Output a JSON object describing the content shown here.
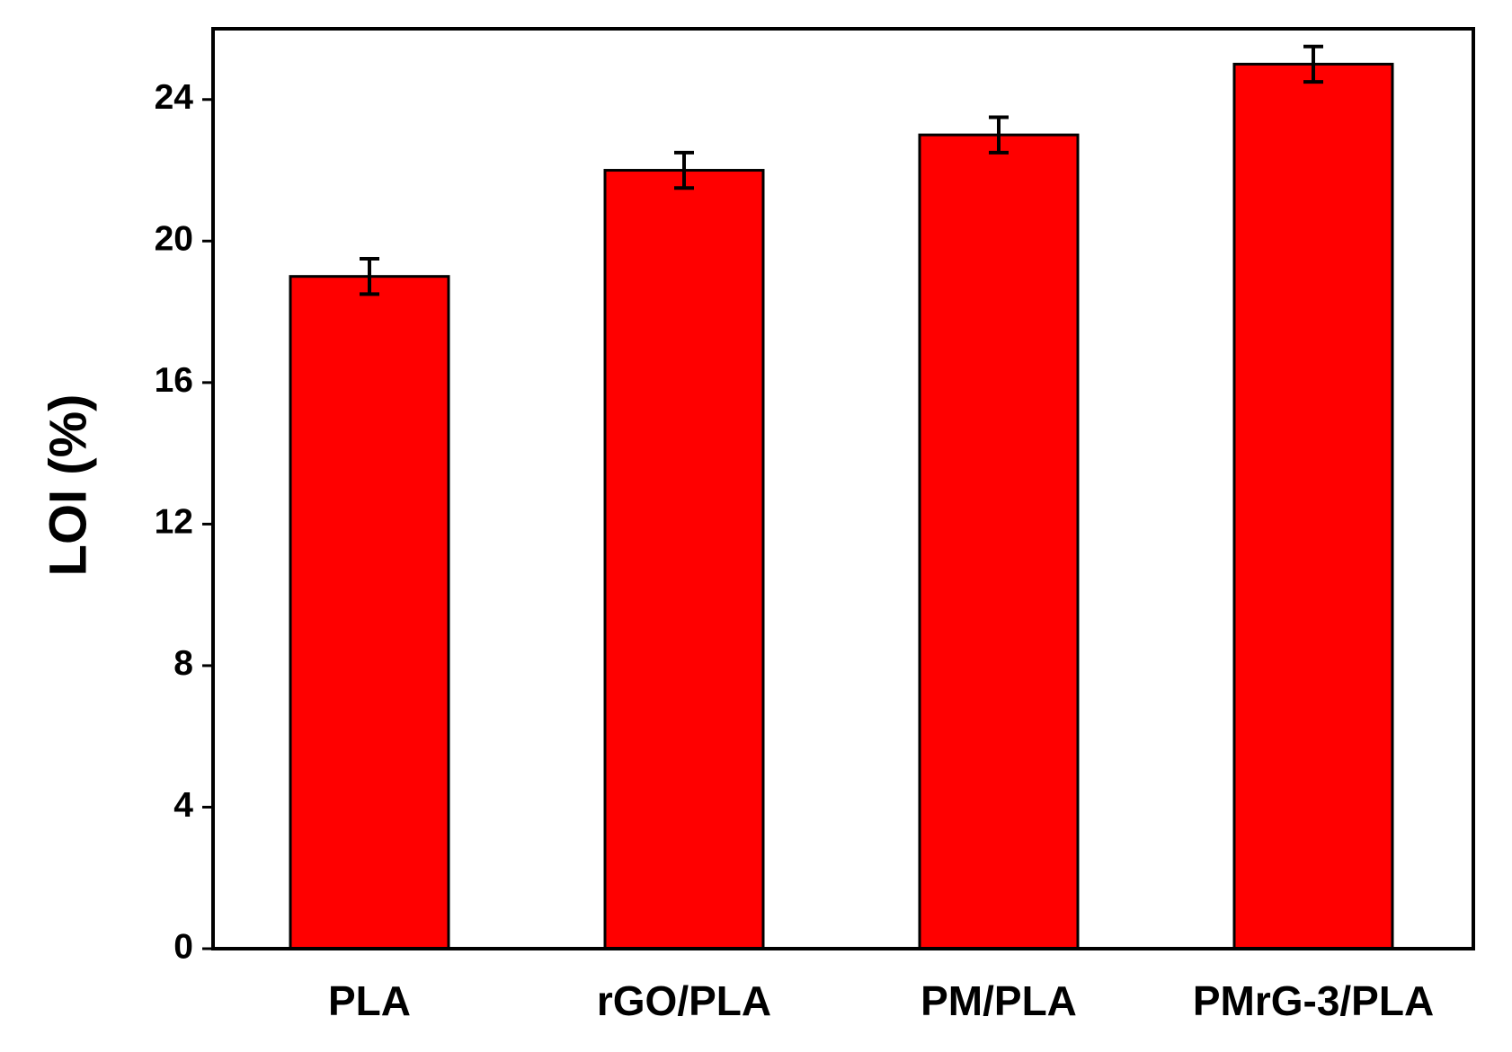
{
  "chart_data": {
    "type": "bar",
    "y_label": "LOI (%)",
    "categories": [
      "PLA",
      "rGO/PLA",
      "PM/PLA",
      "PMrG-3/PLA"
    ],
    "values": [
      19,
      22,
      23,
      25
    ],
    "errors": [
      0.5,
      0.5,
      0.5,
      0.5
    ],
    "color": "#ff0000",
    "ylim": [
      0,
      26
    ],
    "yticks": [
      0,
      4,
      8,
      12,
      16,
      20,
      24
    ],
    "grid": false
  }
}
